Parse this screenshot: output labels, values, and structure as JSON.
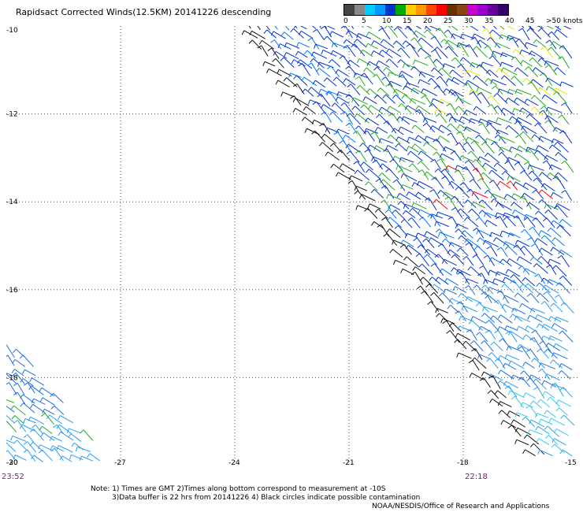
{
  "header": {
    "title": "Rapidsact Corrected Winds(12.5KM) 20141226 descending"
  },
  "legend": {
    "colors": [
      "#444444",
      "#888888",
      "#00ccff",
      "#0099ff",
      "#0033cc",
      "#00aa00",
      "#ffcc00",
      "#ff9900",
      "#ff4400",
      "#ff0000",
      "#663300",
      "#8b4513",
      "#cc00cc",
      "#9900cc",
      "#660099",
      "#330066"
    ],
    "labels": [
      "0",
      "5",
      "10",
      "15",
      "20",
      "25",
      "30",
      "35",
      "40",
      "45",
      ">50 knots"
    ]
  },
  "map": {
    "lon_ticks": [
      "-30",
      "-27",
      "-24",
      "-21",
      "-18",
      "-15"
    ],
    "lat_ticks": [
      "-10",
      "-12",
      "-14",
      "-16",
      "-18",
      "-20"
    ],
    "lon_range": [
      -30,
      -15
    ],
    "lat_range": [
      -20,
      -10
    ],
    "grid": "dotted"
  },
  "times": {
    "left": "23:52",
    "right": "22:18"
  },
  "notes": {
    "line1": "Note: 1) Times are GMT 2)Times along bottom correspond to measurement at -10S",
    "line2": "3)Data buffer is 22 hrs from 20141226 4) Black circles indicate possible contamination",
    "credit": "NOAA/NESDIS/Office of Research and Applications"
  }
}
